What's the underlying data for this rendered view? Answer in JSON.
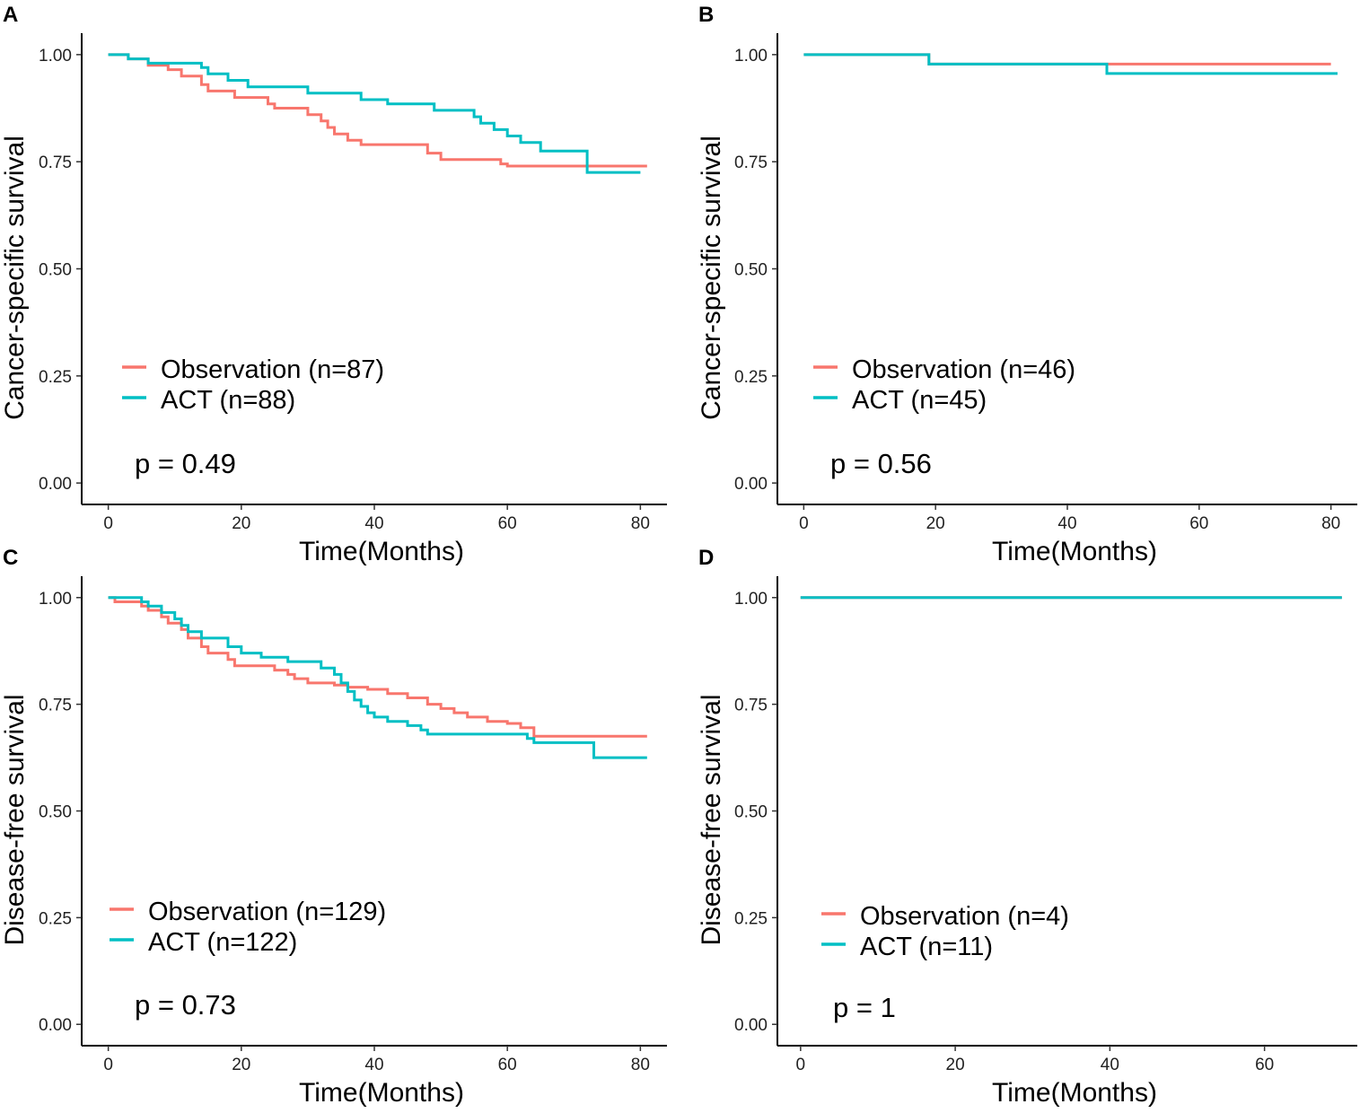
{
  "chart_data": [
    {
      "type": "line",
      "panel_label": "A",
      "xlabel": "Time(Months)",
      "ylabel": "Cancer-specific survival",
      "xlim": [
        -4,
        84
      ],
      "ylim": [
        -0.05,
        1.05
      ],
      "xticks": [
        0,
        20,
        40,
        60,
        80
      ],
      "yticks": [
        0.0,
        0.25,
        0.5,
        0.75,
        1.0
      ],
      "ytick_labels": [
        "0.00",
        "0.25",
        "0.50",
        "0.75",
        "1.00"
      ],
      "legend": [
        "Observation (n=87)",
        "ACT (n=88)"
      ],
      "pvalue": "p = 0.49",
      "series": [
        {
          "name": "Observation",
          "color": "#F8766D",
          "points": [
            [
              0,
              1.0
            ],
            [
              3,
              0.99
            ],
            [
              6,
              0.975
            ],
            [
              9,
              0.965
            ],
            [
              11,
              0.95
            ],
            [
              14,
              0.93
            ],
            [
              15,
              0.915
            ],
            [
              19,
              0.9
            ],
            [
              24,
              0.885
            ],
            [
              25,
              0.875
            ],
            [
              30,
              0.86
            ],
            [
              32,
              0.845
            ],
            [
              33,
              0.83
            ],
            [
              34,
              0.815
            ],
            [
              36,
              0.8
            ],
            [
              38,
              0.79
            ],
            [
              48,
              0.77
            ],
            [
              50,
              0.755
            ],
            [
              59,
              0.745
            ],
            [
              60,
              0.74
            ],
            [
              81,
              0.74
            ]
          ]
        },
        {
          "name": "ACT",
          "color": "#00BFC4",
          "points": [
            [
              0,
              1.0
            ],
            [
              3,
              0.99
            ],
            [
              6,
              0.98
            ],
            [
              14,
              0.97
            ],
            [
              15,
              0.955
            ],
            [
              18,
              0.94
            ],
            [
              21,
              0.925
            ],
            [
              30,
              0.91
            ],
            [
              38,
              0.895
            ],
            [
              42,
              0.885
            ],
            [
              49,
              0.87
            ],
            [
              55,
              0.855
            ],
            [
              56,
              0.84
            ],
            [
              58,
              0.825
            ],
            [
              60,
              0.81
            ],
            [
              62,
              0.795
            ],
            [
              65,
              0.775
            ],
            [
              72,
              0.735
            ],
            [
              72,
              0.725
            ],
            [
              80,
              0.725
            ]
          ]
        }
      ]
    },
    {
      "type": "line",
      "panel_label": "B",
      "xlabel": "Time(Months)",
      "ylabel": "Cancer-specific survival",
      "xlim": [
        -4,
        84
      ],
      "ylim": [
        -0.05,
        1.05
      ],
      "xticks": [
        0,
        20,
        40,
        60,
        80
      ],
      "yticks": [
        0.0,
        0.25,
        0.5,
        0.75,
        1.0
      ],
      "ytick_labels": [
        "0.00",
        "0.25",
        "0.50",
        "0.75",
        "1.00"
      ],
      "legend": [
        "Observation (n=46)",
        "ACT (n=45)"
      ],
      "pvalue": "p = 0.56",
      "series": [
        {
          "name": "Observation",
          "color": "#F8766D",
          "points": [
            [
              0,
              1.0
            ],
            [
              19,
              0.978
            ],
            [
              80,
              0.978
            ]
          ]
        },
        {
          "name": "ACT",
          "color": "#00BFC4",
          "points": [
            [
              0,
              1.0
            ],
            [
              19,
              0.978
            ],
            [
              46,
              0.956
            ],
            [
              81,
              0.956
            ]
          ]
        }
      ]
    },
    {
      "type": "line",
      "panel_label": "C",
      "xlabel": "Time(Months)",
      "ylabel": "Disease-free survival",
      "xlim": [
        -4,
        84
      ],
      "ylim": [
        -0.05,
        1.05
      ],
      "xticks": [
        0,
        20,
        40,
        60,
        80
      ],
      "yticks": [
        0.0,
        0.25,
        0.5,
        0.75,
        1.0
      ],
      "ytick_labels": [
        "0.00",
        "0.25",
        "0.50",
        "0.75",
        "1.00"
      ],
      "legend": [
        "Observation (n=129)",
        "ACT (n=122)"
      ],
      "pvalue": "p = 0.73",
      "series": [
        {
          "name": "Observation",
          "color": "#F8766D",
          "points": [
            [
              0,
              1.0
            ],
            [
              1,
              0.99
            ],
            [
              5,
              0.98
            ],
            [
              6,
              0.97
            ],
            [
              8,
              0.955
            ],
            [
              9,
              0.94
            ],
            [
              11,
              0.925
            ],
            [
              12,
              0.905
            ],
            [
              14,
              0.885
            ],
            [
              15,
              0.87
            ],
            [
              18,
              0.855
            ],
            [
              19,
              0.84
            ],
            [
              25,
              0.83
            ],
            [
              27,
              0.82
            ],
            [
              28,
              0.81
            ],
            [
              30,
              0.8
            ],
            [
              34,
              0.795
            ],
            [
              36,
              0.79
            ],
            [
              39,
              0.785
            ],
            [
              42,
              0.775
            ],
            [
              45,
              0.765
            ],
            [
              48,
              0.75
            ],
            [
              50,
              0.74
            ],
            [
              52,
              0.73
            ],
            [
              54,
              0.72
            ],
            [
              57,
              0.71
            ],
            [
              60,
              0.705
            ],
            [
              62,
              0.695
            ],
            [
              64,
              0.685
            ],
            [
              64,
              0.675
            ],
            [
              81,
              0.675
            ]
          ]
        },
        {
          "name": "ACT",
          "color": "#00BFC4",
          "points": [
            [
              0,
              1.0
            ],
            [
              5,
              0.99
            ],
            [
              6,
              0.98
            ],
            [
              8,
              0.965
            ],
            [
              10,
              0.95
            ],
            [
              11,
              0.935
            ],
            [
              12,
              0.92
            ],
            [
              14,
              0.905
            ],
            [
              18,
              0.885
            ],
            [
              20,
              0.87
            ],
            [
              23,
              0.86
            ],
            [
              27,
              0.85
            ],
            [
              32,
              0.835
            ],
            [
              34,
              0.82
            ],
            [
              35,
              0.8
            ],
            [
              36,
              0.78
            ],
            [
              37,
              0.76
            ],
            [
              38,
              0.745
            ],
            [
              39,
              0.73
            ],
            [
              40,
              0.72
            ],
            [
              42,
              0.71
            ],
            [
              45,
              0.7
            ],
            [
              47,
              0.69
            ],
            [
              48,
              0.68
            ],
            [
              63,
              0.67
            ],
            [
              64,
              0.66
            ],
            [
              73,
              0.66
            ],
            [
              73,
              0.625
            ],
            [
              81,
              0.625
            ]
          ]
        }
      ]
    },
    {
      "type": "line",
      "panel_label": "D",
      "xlabel": "Time(Months)",
      "ylabel": "Disease-free survival",
      "xlim": [
        -3,
        72
      ],
      "ylim": [
        -0.05,
        1.05
      ],
      "xticks": [
        0,
        20,
        40,
        60
      ],
      "yticks": [
        0.0,
        0.25,
        0.5,
        0.75,
        1.0
      ],
      "ytick_labels": [
        "0.00",
        "0.25",
        "0.50",
        "0.75",
        "1.00"
      ],
      "legend": [
        "Observation (n=4)",
        "ACT (n=11)"
      ],
      "pvalue": "p = 1",
      "series": [
        {
          "name": "Observation",
          "color": "#F8766D",
          "points": [
            [
              0,
              1.0
            ],
            [
              70,
              1.0
            ]
          ]
        },
        {
          "name": "ACT",
          "color": "#00BFC4",
          "points": [
            [
              0,
              1.0
            ],
            [
              70,
              1.0
            ]
          ]
        }
      ]
    }
  ]
}
